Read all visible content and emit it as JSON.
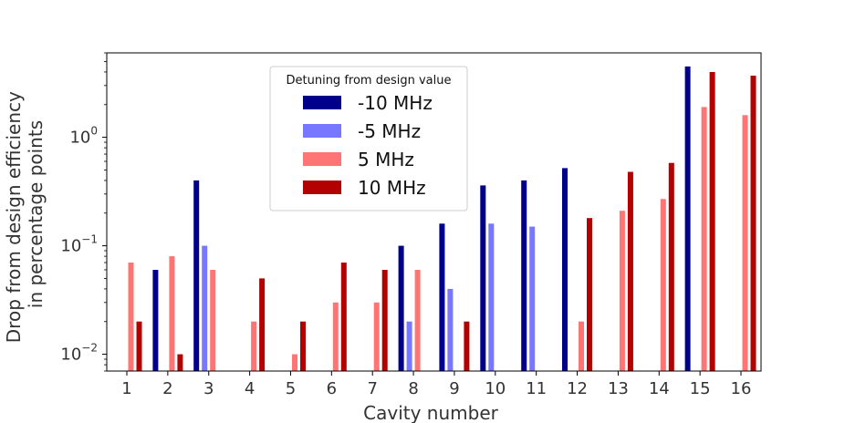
{
  "chart_data": {
    "type": "bar",
    "xlabel": "Cavity number",
    "ylabel": [
      "Drop from design efficiency",
      "in percentage points"
    ],
    "yscale": "log",
    "ylim": [
      0.007,
      6
    ],
    "yticks": [
      {
        "value": 0.01,
        "base": "10",
        "exp": "−2"
      },
      {
        "value": 0.1,
        "base": "10",
        "exp": "−1"
      },
      {
        "value": 1,
        "base": "10",
        "exp": "0"
      }
    ],
    "categories": [
      "1",
      "2",
      "3",
      "4",
      "5",
      "6",
      "7",
      "8",
      "9",
      "10",
      "11",
      "12",
      "13",
      "14",
      "15",
      "16"
    ],
    "grid": false,
    "legend": {
      "title": "Detuning from  design value",
      "placement": "upper-center"
    },
    "series": [
      {
        "name": "-10 MHz",
        "color": "#00008b",
        "values": [
          null,
          0.06,
          0.4,
          null,
          null,
          null,
          null,
          0.1,
          0.16,
          0.36,
          0.4,
          0.52,
          null,
          null,
          4.5,
          null
        ]
      },
      {
        "name": "-5 MHz",
        "color": "#7777ff",
        "values": [
          null,
          null,
          0.1,
          null,
          null,
          null,
          null,
          0.02,
          0.04,
          0.16,
          0.15,
          null,
          null,
          null,
          null,
          null
        ]
      },
      {
        "name": "5 MHz",
        "color": "#ff7575",
        "values": [
          0.07,
          0.08,
          0.06,
          0.02,
          0.01,
          0.03,
          0.03,
          0.06,
          null,
          null,
          null,
          0.02,
          0.21,
          0.27,
          1.9,
          1.6
        ]
      },
      {
        "name": "10 MHz",
        "color": "#b30000",
        "values": [
          0.02,
          0.01,
          null,
          0.05,
          0.02,
          0.07,
          0.06,
          null,
          0.02,
          null,
          null,
          0.18,
          0.48,
          0.58,
          4.0,
          3.7
        ]
      }
    ]
  }
}
